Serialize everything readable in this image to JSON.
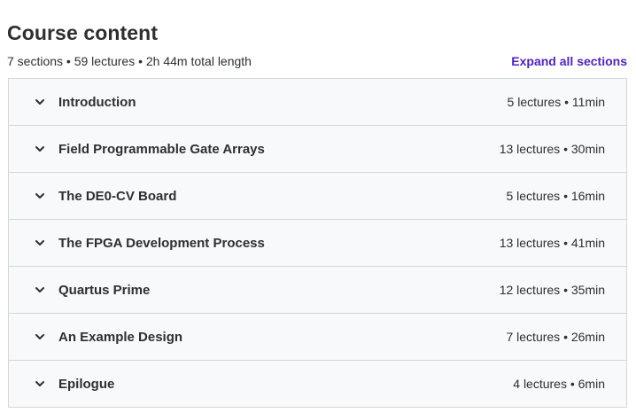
{
  "header": {
    "title": "Course content"
  },
  "summary": {
    "text": "7 sections • 59 lectures • 2h 44m total length",
    "expand_label": "Expand all sections"
  },
  "colors": {
    "accent": "#5022c3",
    "section_bg": "#f7f9fa",
    "border": "#d1d7dc",
    "text": "#2d2f31"
  },
  "sections": [
    {
      "title": "Introduction",
      "meta": "5 lectures • 11min",
      "icon": "chevron-down-icon"
    },
    {
      "title": "Field Programmable Gate Arrays",
      "meta": "13 lectures • 30min",
      "icon": "chevron-down-icon"
    },
    {
      "title": "The DE0-CV Board",
      "meta": "5 lectures • 16min",
      "icon": "chevron-down-icon"
    },
    {
      "title": "The FPGA Development Process",
      "meta": "13 lectures • 41min",
      "icon": "chevron-down-icon"
    },
    {
      "title": "Quartus Prime",
      "meta": "12 lectures • 35min",
      "icon": "chevron-down-icon"
    },
    {
      "title": "An Example Design",
      "meta": "7 lectures • 26min",
      "icon": "chevron-down-icon"
    },
    {
      "title": "Epilogue",
      "meta": "4 lectures • 6min",
      "icon": "chevron-down-icon"
    }
  ]
}
